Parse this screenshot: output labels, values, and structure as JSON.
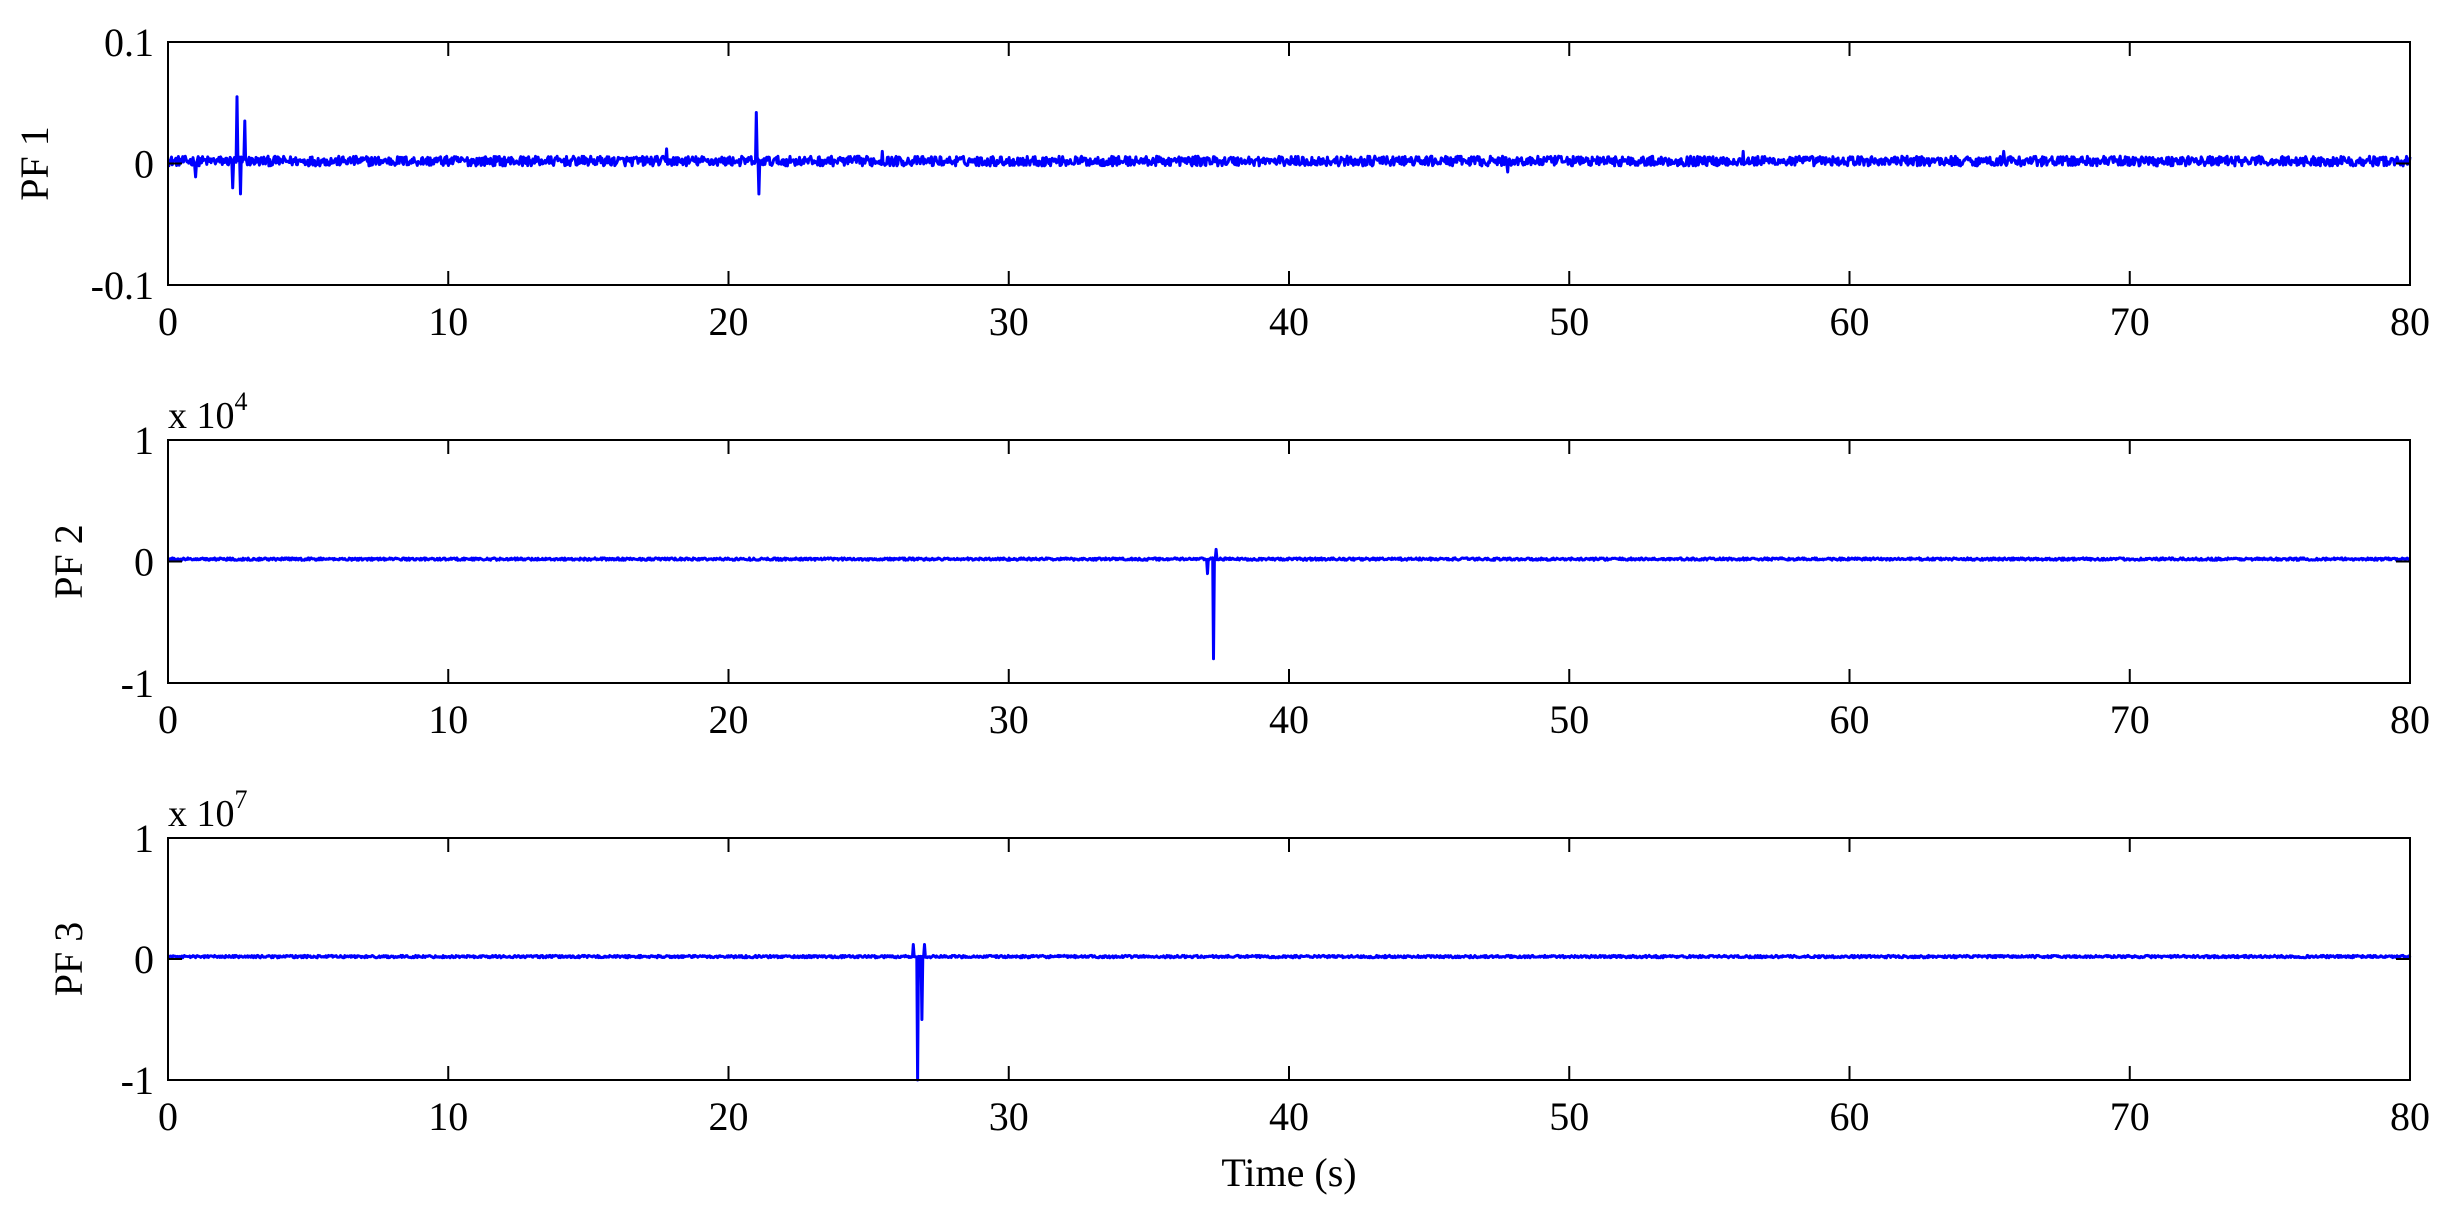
{
  "figure": {
    "xlabel": "Time (s)"
  },
  "colors": {
    "line": "#0000ff",
    "axes": "#000000",
    "background": "#ffffff"
  },
  "chart_data": [
    {
      "type": "line",
      "ylabel": "PF 1",
      "xlim": [
        0,
        80
      ],
      "ylim": [
        -0.1,
        0.1
      ],
      "xticks": [
        0,
        10,
        20,
        30,
        40,
        50,
        60,
        70,
        80
      ],
      "xtick_labels": [
        "0",
        "10",
        "20",
        "30",
        "40",
        "50",
        "60",
        "70",
        "80"
      ],
      "yticks": [
        -0.1,
        0,
        0.1
      ],
      "ytick_labels": [
        "-0.1",
        "0",
        "0.1"
      ],
      "multiplier_base": "",
      "multiplier_exp": "",
      "grid": false,
      "noise_amplitude": 0.004,
      "baseline": 0.002,
      "spikes": [
        {
          "x": 1.0,
          "y": -0.011
        },
        {
          "x": 2.3,
          "y": -0.02
        },
        {
          "x": 2.45,
          "y": 0.055
        },
        {
          "x": 2.6,
          "y": -0.025
        },
        {
          "x": 2.75,
          "y": 0.035
        },
        {
          "x": 17.8,
          "y": 0.012
        },
        {
          "x": 21.0,
          "y": 0.042
        },
        {
          "x": 21.1,
          "y": -0.025
        },
        {
          "x": 25.5,
          "y": 0.01
        },
        {
          "x": 47.8,
          "y": -0.007
        },
        {
          "x": 56.2,
          "y": 0.01
        },
        {
          "x": 65.5,
          "y": 0.01
        }
      ]
    },
    {
      "type": "line",
      "ylabel": "PF 2",
      "xlim": [
        0,
        80
      ],
      "ylim": [
        -1,
        1
      ],
      "xticks": [
        0,
        10,
        20,
        30,
        40,
        50,
        60,
        70,
        80
      ],
      "xtick_labels": [
        "0",
        "10",
        "20",
        "30",
        "40",
        "50",
        "60",
        "70",
        "80"
      ],
      "yticks": [
        -1,
        0,
        1
      ],
      "ytick_labels": [
        "-1",
        "0",
        "1"
      ],
      "multiplier_base": "x 10",
      "multiplier_exp": "4",
      "grid": false,
      "noise_amplitude": 0.01,
      "baseline": 0.02,
      "spikes": [
        {
          "x": 37.1,
          "y": -0.1
        },
        {
          "x": 37.3,
          "y": -0.8
        },
        {
          "x": 37.4,
          "y": 0.1
        }
      ]
    },
    {
      "type": "line",
      "ylabel": "PF 3",
      "xlim": [
        0,
        80
      ],
      "ylim": [
        -1,
        1
      ],
      "xticks": [
        0,
        10,
        20,
        30,
        40,
        50,
        60,
        70,
        80
      ],
      "xtick_labels": [
        "0",
        "10",
        "20",
        "30",
        "40",
        "50",
        "60",
        "70",
        "80"
      ],
      "yticks": [
        -1,
        0,
        1
      ],
      "ytick_labels": [
        "-1",
        "0",
        "1"
      ],
      "multiplier_base": "x 10",
      "multiplier_exp": "7",
      "grid": false,
      "noise_amplitude": 0.01,
      "baseline": 0.02,
      "spikes": [
        {
          "x": 26.6,
          "y": 0.12
        },
        {
          "x": 26.75,
          "y": -1.0
        },
        {
          "x": 26.9,
          "y": -0.5
        },
        {
          "x": 27.0,
          "y": 0.12
        }
      ]
    }
  ]
}
